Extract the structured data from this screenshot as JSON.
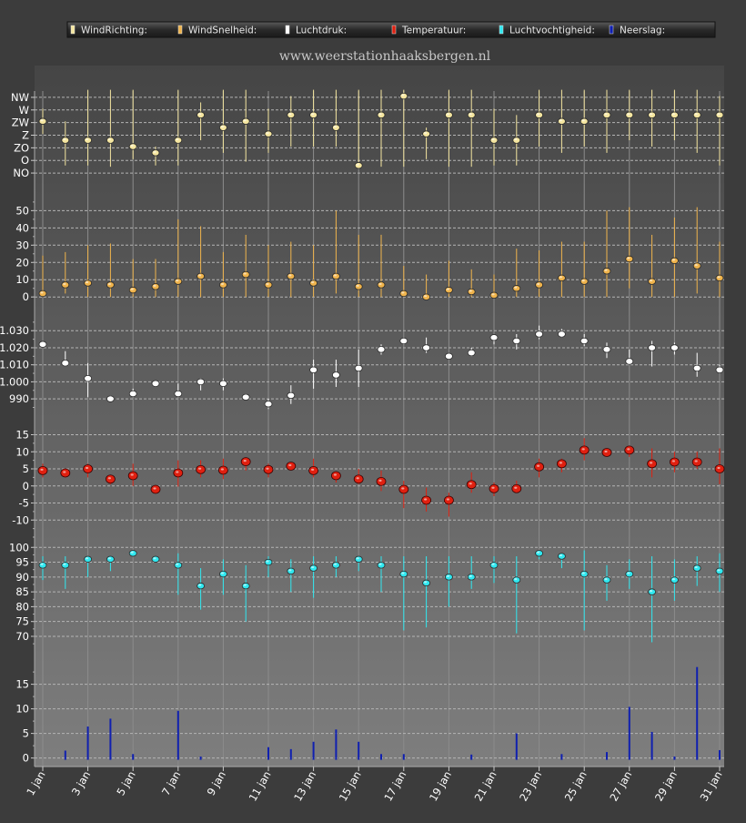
{
  "legend": {
    "items": [
      {
        "label": "WindRichting:",
        "color": "#f5e6a0"
      },
      {
        "label": "WindSnelheid:",
        "color": "#f0b44c"
      },
      {
        "label": "Luchtdruk:",
        "color": "#ffffff"
      },
      {
        "label": "Temperatuur:",
        "color": "#e02010"
      },
      {
        "label": "Luchtvochtigheid:",
        "color": "#30e8f0"
      },
      {
        "label": "Neerslag:",
        "color": "#1020b0"
      }
    ]
  },
  "watermark": "www.weerstationhaaksbergen.nl",
  "chart_data": [
    {
      "type": "scatter",
      "name": "WindRichting",
      "color": "#f5e6a0",
      "y_categories": [
        "NO",
        "O",
        "ZO",
        "Z",
        "ZW",
        "W",
        "NW"
      ],
      "yticks": [
        "NW",
        "W",
        "ZW",
        "Z",
        "ZO",
        "O",
        "NO"
      ],
      "ylim": [
        -0.5,
        6.5
      ],
      "x": [
        1,
        2,
        3,
        4,
        5,
        6,
        7,
        8,
        9,
        10,
        11,
        12,
        13,
        14,
        15,
        16,
        17,
        18,
        19,
        20,
        21,
        22,
        23,
        24,
        25,
        26,
        27,
        28,
        29,
        30,
        31
      ],
      "values": [
        4.1,
        2.6,
        2.6,
        2.6,
        2.1,
        1.6,
        2.6,
        4.6,
        3.6,
        4.1,
        3.1,
        4.6,
        4.6,
        3.6,
        0.6,
        4.6,
        6.1,
        3.1,
        4.6,
        4.6,
        2.6,
        2.6,
        4.6,
        4.1,
        4.1,
        4.6,
        4.6,
        4.6,
        4.6,
        4.6,
        4.6
      ],
      "low": [
        3.1,
        0.6,
        0.6,
        0.5,
        1.1,
        0.6,
        0.6,
        2.6,
        1.6,
        0.9,
        1.6,
        2.1,
        2.1,
        2.1,
        0.5,
        0.5,
        0.5,
        1.1,
        0.5,
        0.5,
        0.6,
        0.6,
        2.1,
        1.6,
        2.1,
        1.6,
        2.6,
        2.1,
        2.6,
        1.6,
        0.6
      ],
      "high": [
        5.1,
        4.1,
        6.6,
        6.6,
        6.6,
        2.1,
        6.6,
        5.6,
        6.6,
        6.6,
        5.1,
        6.1,
        6.6,
        6.6,
        6.6,
        6.6,
        6.6,
        3.6,
        6.6,
        6.6,
        5.1,
        4.6,
        6.6,
        6.6,
        6.6,
        6.6,
        6.6,
        6.6,
        6.6,
        6.6,
        6.1
      ]
    },
    {
      "type": "scatter",
      "name": "WindSnelheid",
      "color": "#f0b44c",
      "yticks": [
        0,
        10,
        20,
        30,
        40,
        50
      ],
      "ylim": [
        -2,
        56
      ],
      "x": [
        1,
        2,
        3,
        4,
        5,
        6,
        7,
        8,
        9,
        10,
        11,
        12,
        13,
        14,
        15,
        16,
        17,
        18,
        19,
        20,
        21,
        22,
        23,
        24,
        25,
        26,
        27,
        28,
        29,
        30,
        31
      ],
      "values": [
        2,
        7,
        8,
        7,
        4,
        6,
        9,
        12,
        7,
        13,
        7,
        12,
        8,
        12,
        6,
        7,
        2,
        0,
        4,
        3,
        1,
        5,
        7,
        11,
        9,
        15,
        22,
        9,
        21,
        18,
        11
      ],
      "low": [
        0,
        2,
        0,
        0,
        0,
        0,
        0,
        0,
        0,
        0,
        0,
        0,
        0,
        2,
        0,
        0,
        0,
        0,
        0,
        0,
        0,
        0,
        0,
        0,
        0,
        0,
        5,
        0,
        0,
        2,
        0
      ],
      "high": [
        24,
        26,
        30,
        31,
        22,
        22,
        45,
        41,
        26,
        36,
        30,
        32,
        30,
        50,
        36,
        36,
        18,
        13,
        21,
        16,
        13,
        28,
        27,
        32,
        32,
        50,
        52,
        36,
        46,
        52,
        32
      ]
    },
    {
      "type": "scatter",
      "name": "Luchtdruk",
      "color": "#ffffff",
      "yticks": [
        990,
        1000,
        1010,
        1020,
        1030
      ],
      "ylim": [
        981,
        1036
      ],
      "x": [
        1,
        2,
        3,
        4,
        5,
        6,
        7,
        8,
        9,
        10,
        11,
        12,
        13,
        14,
        15,
        16,
        17,
        18,
        19,
        20,
        21,
        22,
        23,
        24,
        25,
        26,
        27,
        28,
        29,
        30,
        31
      ],
      "values": [
        1022,
        1011,
        1002,
        990,
        993,
        999,
        993,
        1000,
        999,
        991,
        987,
        992,
        1007,
        1004,
        1008,
        1019,
        1024,
        1020,
        1015,
        1017,
        1026,
        1024,
        1028,
        1028,
        1024,
        1019,
        1012,
        1020,
        1020,
        1008,
        1007
      ],
      "low": [
        1020,
        1009,
        991,
        990,
        991,
        997,
        991,
        995,
        995,
        989,
        984,
        987,
        996,
        997,
        997,
        1016,
        1022,
        1017,
        1014,
        1015,
        1022,
        1019,
        1025,
        1026,
        1021,
        1014,
        1010,
        1009,
        1016,
        1003,
        1005
      ],
      "high": [
        1024,
        1018,
        1011,
        992,
        996,
        1000,
        999,
        1002,
        1002,
        993,
        990,
        998,
        1013,
        1013,
        1019,
        1022,
        1026,
        1026,
        1016,
        1020,
        1028,
        1028,
        1033,
        1031,
        1028,
        1023,
        1019,
        1024,
        1023,
        1017,
        1010
      ]
    },
    {
      "type": "scatter",
      "name": "Temperatuur",
      "color": "#e02010",
      "yticks": [
        -10,
        -5,
        0,
        5,
        10,
        15
      ],
      "ylim": [
        -15,
        17
      ],
      "x": [
        1,
        2,
        3,
        4,
        5,
        6,
        7,
        8,
        9,
        10,
        11,
        12,
        13,
        14,
        15,
        16,
        17,
        18,
        19,
        20,
        21,
        22,
        23,
        24,
        25,
        26,
        27,
        28,
        29,
        30,
        31
      ],
      "values": [
        4.5,
        3.8,
        5.0,
        2.0,
        3.0,
        -1.0,
        3.8,
        4.8,
        4.6,
        7.1,
        4.8,
        5.8,
        4.5,
        3.0,
        2.0,
        1.3,
        -1.0,
        -4.2,
        -4.2,
        0.4,
        -0.8,
        -0.8,
        5.6,
        6.5,
        10.5,
        9.8,
        10.5,
        6.5,
        7.0,
        7.0,
        5.0
      ],
      "low": [
        2.5,
        2.5,
        2.5,
        0.5,
        0.0,
        -2.0,
        -0.2,
        2.5,
        2.0,
        4.5,
        2.5,
        4.5,
        2.5,
        1.0,
        0.5,
        -1.5,
        -6.5,
        -7.5,
        -9.0,
        -2.0,
        -3.0,
        -2.0,
        2.5,
        4.0,
        7.5,
        8.5,
        8.5,
        2.5,
        4.0,
        5.0,
        0.5
      ],
      "high": [
        6.5,
        4.5,
        6.5,
        2.5,
        6.5,
        0.0,
        7.5,
        7.5,
        8.0,
        8.0,
        6.5,
        6.5,
        8.0,
        3.5,
        5.0,
        4.5,
        1.5,
        -0.5,
        -2.0,
        4.0,
        1.0,
        1.5,
        8.0,
        8.0,
        14.0,
        11.0,
        11.0,
        11.0,
        10.0,
        10.0,
        11.0
      ]
    },
    {
      "type": "scatter",
      "name": "Luchtvochtigheid",
      "color": "#30e8f0",
      "yticks": [
        70,
        75,
        80,
        85,
        90,
        95,
        100
      ],
      "ylim": [
        66,
        101
      ],
      "x": [
        1,
        2,
        3,
        4,
        5,
        6,
        7,
        8,
        9,
        10,
        11,
        12,
        13,
        14,
        15,
        16,
        17,
        18,
        19,
        20,
        21,
        22,
        23,
        24,
        25,
        26,
        27,
        28,
        29,
        30,
        31
      ],
      "values": [
        94,
        94,
        96,
        96,
        98,
        96,
        94,
        87,
        91,
        87,
        95,
        92,
        93,
        94,
        96,
        94,
        91,
        88,
        90,
        90,
        94,
        89,
        98,
        97,
        91,
        89,
        91,
        85,
        89,
        93,
        92
      ],
      "low": [
        89,
        86,
        90,
        92,
        97,
        95,
        84,
        79,
        84,
        75,
        90,
        85,
        83,
        90,
        92,
        85,
        72,
        73,
        80,
        86,
        88,
        71,
        96,
        93,
        72,
        82,
        86,
        68,
        82,
        87,
        85
      ],
      "high": [
        97,
        97,
        97,
        97,
        98,
        97,
        98,
        93,
        96,
        94,
        97,
        96,
        97,
        97,
        97,
        97,
        97,
        97,
        97,
        97,
        97,
        97,
        98,
        98,
        99,
        94,
        96,
        97,
        96,
        97,
        98
      ]
    },
    {
      "type": "bar",
      "name": "Neerslag",
      "color": "#1020b0",
      "yticks": [
        0,
        5,
        10,
        15
      ],
      "ylim": [
        -1,
        19
      ],
      "x": [
        1,
        2,
        3,
        4,
        5,
        6,
        7,
        8,
        9,
        10,
        11,
        12,
        13,
        14,
        15,
        16,
        17,
        18,
        19,
        20,
        21,
        22,
        23,
        24,
        25,
        26,
        27,
        28,
        29,
        30,
        31
      ],
      "values": [
        0,
        1.5,
        6.4,
        8.0,
        0.8,
        0,
        9.6,
        0.3,
        0,
        0,
        2.2,
        1.8,
        3.3,
        5.8,
        3.3,
        0.8,
        0.8,
        0,
        0,
        0.7,
        0,
        5.0,
        0,
        0.8,
        0,
        1.2,
        10.4,
        5.3,
        0.3,
        18.5,
        1.6
      ]
    }
  ],
  "x_axis": {
    "tick_labels": [
      "1 jan",
      "3 jan",
      "5 jan",
      "7 jan",
      "9 jan",
      "11 jan",
      "13 jan",
      "15 jan",
      "17 jan",
      "19 jan",
      "21 jan",
      "23 jan",
      "25 jan",
      "27 jan",
      "29 jan",
      "31 jan"
    ],
    "tick_days": [
      1,
      3,
      5,
      7,
      9,
      11,
      13,
      15,
      17,
      19,
      21,
      23,
      25,
      27,
      29,
      31
    ]
  }
}
